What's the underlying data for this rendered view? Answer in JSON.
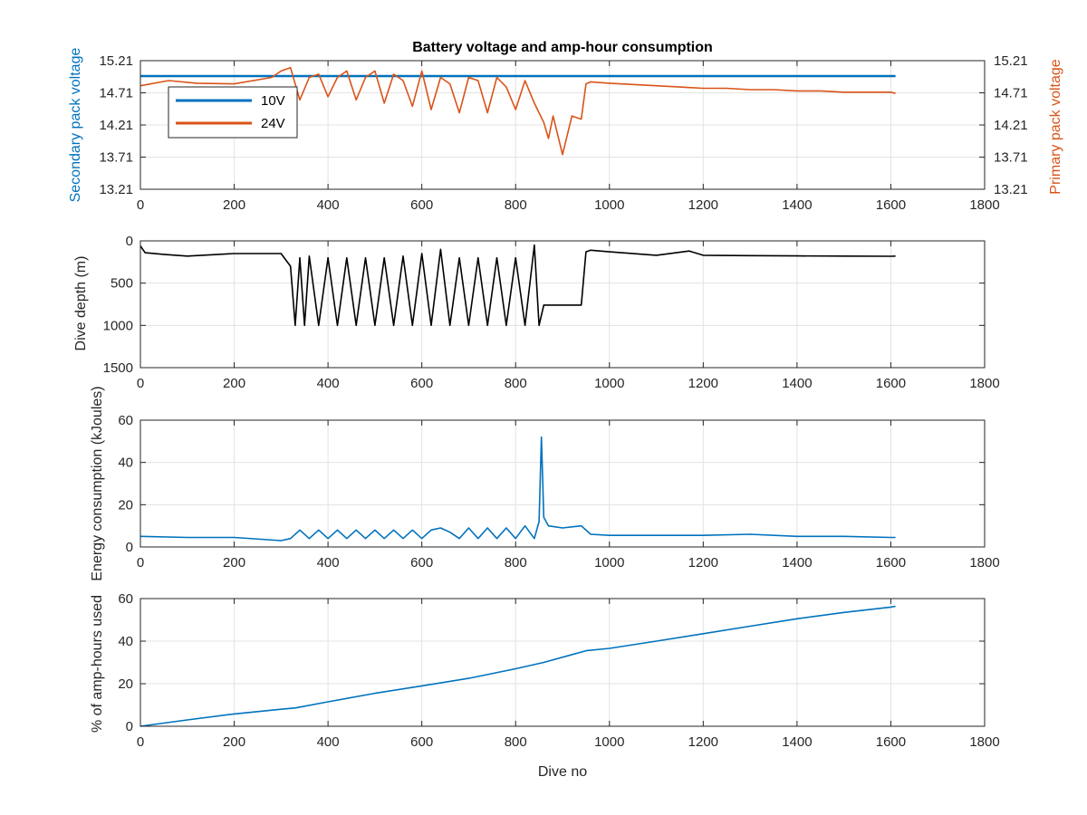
{
  "chart_data": [
    {
      "type": "line",
      "title": "Battery voltage and amp-hour consumption",
      "xlabel": "",
      "ylabel_left": "Secondary pack voltage",
      "ylabel_right": "Primary pack voltage",
      "xlim": [
        0,
        1800
      ],
      "ylim": [
        13.21,
        15.21
      ],
      "x_ticks": [
        "0",
        "200",
        "400",
        "600",
        "800",
        "1000",
        "1200",
        "1400",
        "1600",
        "1800"
      ],
      "y_ticks": [
        "13.21",
        "13.71",
        "14.21",
        "14.71",
        "15.21"
      ],
      "grid": true,
      "legend": {
        "position": "top-left",
        "entries": [
          "10V",
          "24V"
        ]
      },
      "colors": {
        "left_axis": "#0072bd",
        "right_axis": "#d95319",
        "10V": "#0072bd",
        "24V": "#d95319"
      },
      "series": [
        {
          "name": "10V",
          "x": [
            0,
            1610
          ],
          "y": [
            14.97,
            14.97
          ]
        },
        {
          "name": "24V",
          "x": [
            0,
            60,
            120,
            200,
            280,
            300,
            320,
            340,
            360,
            380,
            400,
            420,
            440,
            460,
            480,
            500,
            520,
            540,
            560,
            580,
            600,
            620,
            640,
            660,
            680,
            700,
            720,
            740,
            760,
            780,
            800,
            820,
            840,
            860,
            870,
            880,
            900,
            920,
            940,
            950,
            960,
            1000,
            1050,
            1100,
            1150,
            1200,
            1250,
            1300,
            1350,
            1400,
            1450,
            1500,
            1550,
            1600,
            1610
          ],
          "y": [
            14.82,
            14.9,
            14.86,
            14.85,
            14.95,
            15.05,
            15.1,
            14.6,
            14.95,
            15.0,
            14.65,
            14.95,
            15.05,
            14.6,
            14.95,
            15.05,
            14.55,
            15.0,
            14.9,
            14.5,
            15.05,
            14.45,
            14.95,
            14.85,
            14.4,
            14.95,
            14.9,
            14.4,
            14.95,
            14.8,
            14.45,
            14.9,
            14.55,
            14.25,
            14.0,
            14.35,
            13.75,
            14.35,
            14.3,
            14.85,
            14.88,
            14.86,
            14.84,
            14.82,
            14.8,
            14.78,
            14.78,
            14.76,
            14.76,
            14.74,
            14.74,
            14.72,
            14.72,
            14.72,
            14.7
          ]
        }
      ]
    },
    {
      "type": "line",
      "title": "",
      "xlabel": "",
      "ylabel": "Dive depth (m)",
      "xlim": [
        0,
        1800
      ],
      "ylim": [
        0,
        1500
      ],
      "y_reversed": true,
      "x_ticks": [
        "0",
        "200",
        "400",
        "600",
        "800",
        "1000",
        "1200",
        "1400",
        "1600",
        "1800"
      ],
      "y_ticks": [
        "0",
        "500",
        "1000",
        "1500"
      ],
      "grid": true,
      "colors": {
        "line": "#000000"
      },
      "series": [
        {
          "x": [
            0,
            10,
            50,
            100,
            200,
            300,
            320,
            330,
            340,
            350,
            360,
            380,
            400,
            420,
            440,
            460,
            480,
            500,
            520,
            540,
            560,
            580,
            600,
            620,
            640,
            660,
            680,
            700,
            720,
            740,
            760,
            780,
            800,
            820,
            840,
            850,
            860,
            870,
            900,
            940,
            950,
            960,
            1000,
            1100,
            1170,
            1200,
            1300,
            1400,
            1500,
            1600,
            1610
          ],
          "y": [
            60,
            140,
            160,
            180,
            150,
            150,
            300,
            1000,
            200,
            1000,
            180,
            1000,
            200,
            1000,
            200,
            1000,
            200,
            1000,
            200,
            1000,
            180,
            1000,
            150,
            1000,
            100,
            1000,
            200,
            1000,
            200,
            1000,
            200,
            1000,
            200,
            1000,
            50,
            1000,
            760,
            760,
            760,
            760,
            130,
            110,
            130,
            170,
            120,
            170,
            175,
            178,
            180,
            182,
            180
          ]
        }
      ]
    },
    {
      "type": "line",
      "title": "",
      "xlabel": "",
      "ylabel": "Energy consumption (kJoules)",
      "xlim": [
        0,
        1800
      ],
      "ylim": [
        0,
        60
      ],
      "x_ticks": [
        "0",
        "200",
        "400",
        "600",
        "800",
        "1000",
        "1200",
        "1400",
        "1600",
        "1800"
      ],
      "y_ticks": [
        "0",
        "20",
        "40",
        "60"
      ],
      "grid": true,
      "colors": {
        "line": "#0072bd"
      },
      "series": [
        {
          "x": [
            0,
            100,
            200,
            300,
            320,
            340,
            360,
            380,
            400,
            420,
            440,
            460,
            480,
            500,
            520,
            540,
            560,
            580,
            600,
            620,
            640,
            660,
            680,
            700,
            720,
            740,
            760,
            780,
            800,
            820,
            840,
            850,
            855,
            860,
            870,
            900,
            940,
            960,
            1000,
            1100,
            1200,
            1300,
            1400,
            1500,
            1600,
            1610
          ],
          "y": [
            5,
            4.5,
            4.5,
            3,
            4,
            8,
            4,
            8,
            4,
            8,
            4,
            8,
            4,
            8,
            4,
            8,
            4,
            8,
            4,
            8,
            9,
            7,
            4,
            9,
            4,
            9,
            4,
            9,
            4,
            10,
            4,
            12,
            52,
            14,
            10,
            9,
            10,
            6,
            5.5,
            5.5,
            5.5,
            6,
            5,
            5,
            4.5,
            4.5
          ]
        }
      ]
    },
    {
      "type": "line",
      "title": "",
      "xlabel": "Dive no",
      "ylabel": "% of amp-hours used",
      "xlim": [
        0,
        1800
      ],
      "ylim": [
        0,
        60
      ],
      "x_ticks": [
        "0",
        "200",
        "400",
        "600",
        "800",
        "1000",
        "1200",
        "1400",
        "1600",
        "1800"
      ],
      "y_ticks": [
        "0",
        "20",
        "40",
        "60"
      ],
      "grid": true,
      "colors": {
        "line": "#0072bd"
      },
      "series": [
        {
          "x": [
            0,
            100,
            200,
            300,
            330,
            400,
            500,
            600,
            700,
            800,
            860,
            950,
            1000,
            1100,
            1200,
            1300,
            1400,
            1500,
            1600,
            1610
          ],
          "y": [
            0,
            3,
            5.8,
            8,
            8.6,
            11.5,
            15.5,
            19,
            22.5,
            27,
            30,
            35.5,
            36.6,
            40,
            43.5,
            47,
            50.5,
            53.5,
            56,
            56.4
          ]
        }
      ]
    }
  ]
}
